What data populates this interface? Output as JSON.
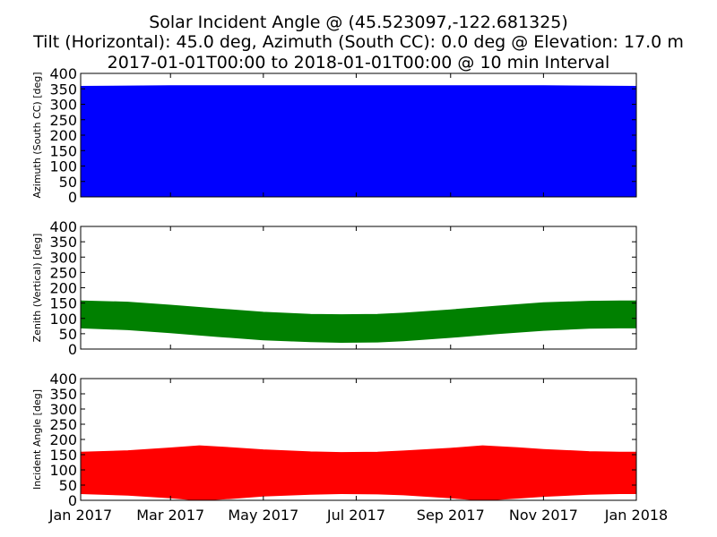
{
  "title_lines": [
    "Solar Incident Angle @ (45.523097,-122.681325)",
    "Tilt (Horizontal): 45.0 deg, Azimuth (South CC): 0.0 deg @ Elevation: 17.0 m",
    "2017-01-01T00:00 to 2018-01-01T00:00 @ 10 min Interval"
  ],
  "chart_data": [
    {
      "type": "area",
      "ylabel": "Azimuth (South CC) [deg]",
      "color": "#0000ff",
      "ylim": [
        0,
        400
      ],
      "yticks": [
        "0",
        "50",
        "100",
        "150",
        "200",
        "250",
        "300",
        "350",
        "400"
      ],
      "xlim": [
        "2017-01-01",
        "2018-01-01"
      ],
      "series": [
        {
          "x": [
            "2017-01-01",
            "2017-03-01",
            "2017-05-01",
            "2017-07-01",
            "2017-09-01",
            "2017-11-01",
            "2018-01-01"
          ],
          "low": [
            0,
            0,
            0,
            0,
            0,
            0,
            0
          ],
          "high": [
            358,
            360,
            360,
            360,
            360,
            360,
            358
          ]
        }
      ]
    },
    {
      "type": "area",
      "ylabel": "Zenith (Vertical) [deg]",
      "color": "#008000",
      "ylim": [
        0,
        400
      ],
      "yticks": [
        "0",
        "50",
        "100",
        "150",
        "200",
        "250",
        "300",
        "350",
        "400"
      ],
      "xlim": [
        "2017-01-01",
        "2018-01-01"
      ],
      "series": [
        {
          "x": [
            "2017-01-01",
            "2017-02-01",
            "2017-03-01",
            "2017-04-01",
            "2017-05-01",
            "2017-06-01",
            "2017-06-21",
            "2017-07-15",
            "2017-08-01",
            "2017-09-01",
            "2017-10-01",
            "2017-11-01",
            "2017-12-01",
            "2017-12-21",
            "2018-01-01"
          ],
          "low": [
            69,
            63,
            53,
            41,
            30,
            24,
            22,
            23,
            27,
            38,
            50,
            61,
            68,
            69,
            69
          ],
          "high": [
            157,
            153,
            143,
            131,
            120,
            113,
            112,
            113,
            117,
            128,
            140,
            151,
            156,
            157,
            157
          ]
        }
      ]
    },
    {
      "type": "area",
      "ylabel": "Incident Angle [deg]",
      "color": "#ff0000",
      "ylim": [
        0,
        400
      ],
      "yticks": [
        "0",
        "50",
        "100",
        "150",
        "200",
        "250",
        "300",
        "350",
        "400"
      ],
      "xlim": [
        "2017-01-01",
        "2018-01-01"
      ],
      "series": [
        {
          "x": [
            "2017-01-01",
            "2017-02-01",
            "2017-03-01",
            "2017-03-20",
            "2017-04-10",
            "2017-05-01",
            "2017-06-01",
            "2017-06-21",
            "2017-07-15",
            "2017-08-01",
            "2017-09-01",
            "2017-09-22",
            "2017-10-15",
            "2017-11-01",
            "2017-12-01",
            "2017-12-21",
            "2018-01-01"
          ],
          "low": [
            22,
            17,
            8,
            0,
            6,
            14,
            20,
            22,
            21,
            18,
            8,
            0,
            7,
            13,
            20,
            22,
            22
          ],
          "high": [
            158,
            163,
            172,
            179,
            173,
            166,
            159,
            157,
            158,
            162,
            171,
            179,
            173,
            167,
            160,
            158,
            158
          ]
        }
      ]
    }
  ],
  "x_tick_labels": [
    "Jan 2017",
    "Mar 2017",
    "May 2017",
    "Jul 2017",
    "Sep 2017",
    "Nov 2017",
    "Jan 2018"
  ],
  "x_tick_dates": [
    "2017-01-01",
    "2017-03-01",
    "2017-05-01",
    "2017-07-01",
    "2017-09-01",
    "2017-11-01",
    "2018-01-01"
  ]
}
